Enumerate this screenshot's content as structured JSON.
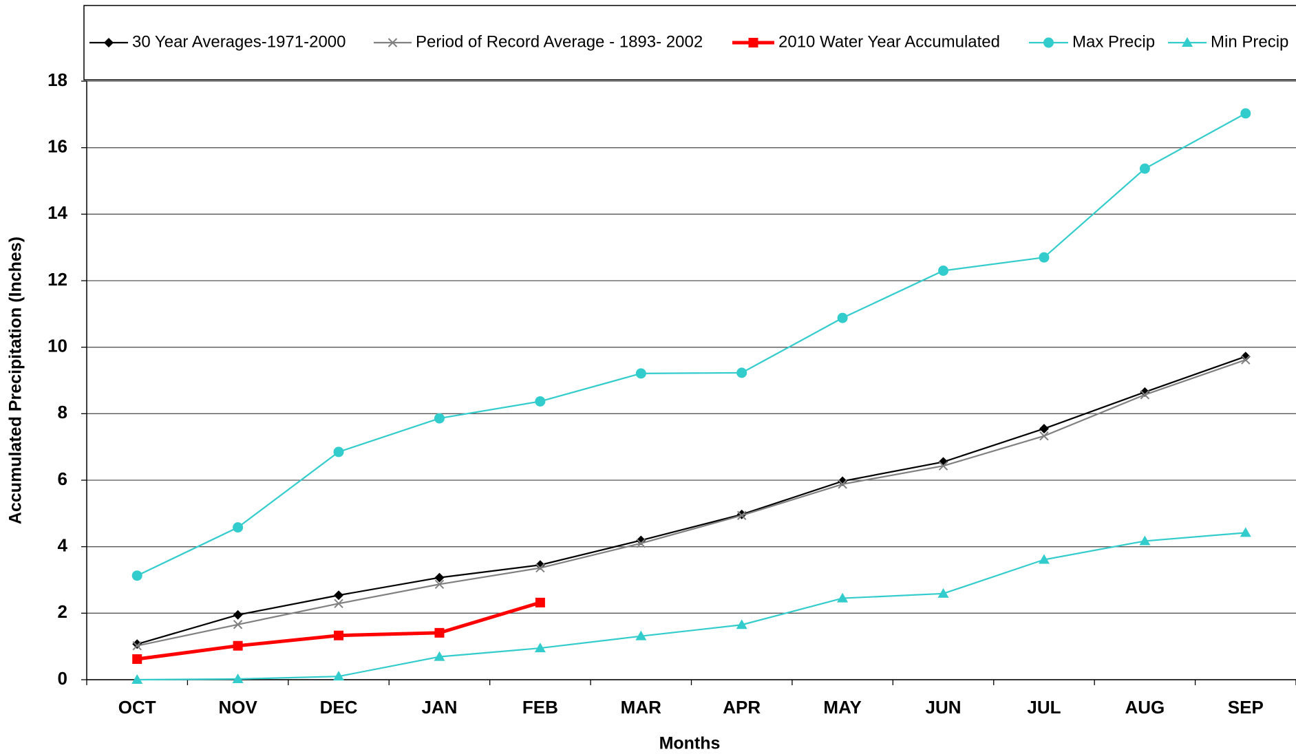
{
  "chart_data": {
    "type": "line",
    "x_label": "Months",
    "y_label": "Accumulated Precipitation (Inches)",
    "categories": [
      "OCT",
      "NOV",
      "DEC",
      "JAN",
      "FEB",
      "MAR",
      "APR",
      "MAY",
      "JUN",
      "JUL",
      "AUG",
      "SEP"
    ],
    "series": [
      {
        "name": "30 Year Averages-1971-2000",
        "color": "#000000",
        "marker": "diamond",
        "values": [
          1.07,
          1.95,
          2.54,
          3.07,
          3.45,
          4.19,
          4.97,
          5.97,
          6.55,
          7.55,
          8.65,
          9.72
        ]
      },
      {
        "name": "Period of Record Average - 1893- 2002",
        "color": "#808080",
        "marker": "x",
        "values": [
          1.02,
          1.66,
          2.29,
          2.87,
          3.36,
          4.1,
          4.94,
          5.88,
          6.43,
          7.33,
          8.57,
          9.62
        ]
      },
      {
        "name": "2010 Water Year Accumulated",
        "color": "#ff0000",
        "marker": "square",
        "values": [
          0.62,
          1.02,
          1.33,
          1.41,
          2.32,
          null,
          null,
          null,
          null,
          null,
          null,
          null
        ]
      },
      {
        "name": "Max Precip",
        "color": "#33cccc",
        "marker": "circle",
        "values": [
          3.13,
          4.58,
          6.85,
          7.86,
          8.37,
          9.21,
          9.23,
          10.88,
          12.3,
          12.7,
          15.37,
          17.03
        ]
      },
      {
        "name": "Min Precip",
        "color": "#33cccc",
        "marker": "triangle",
        "values": [
          0,
          0.02,
          0.1,
          0.69,
          0.95,
          1.31,
          1.65,
          2.45,
          2.59,
          3.61,
          4.17,
          4.42
        ]
      }
    ],
    "ylim": [
      0,
      18
    ],
    "yticks": [
      0,
      2,
      4,
      6,
      8,
      10,
      12,
      14,
      16,
      18
    ],
    "grid": true,
    "legend": "top"
  }
}
